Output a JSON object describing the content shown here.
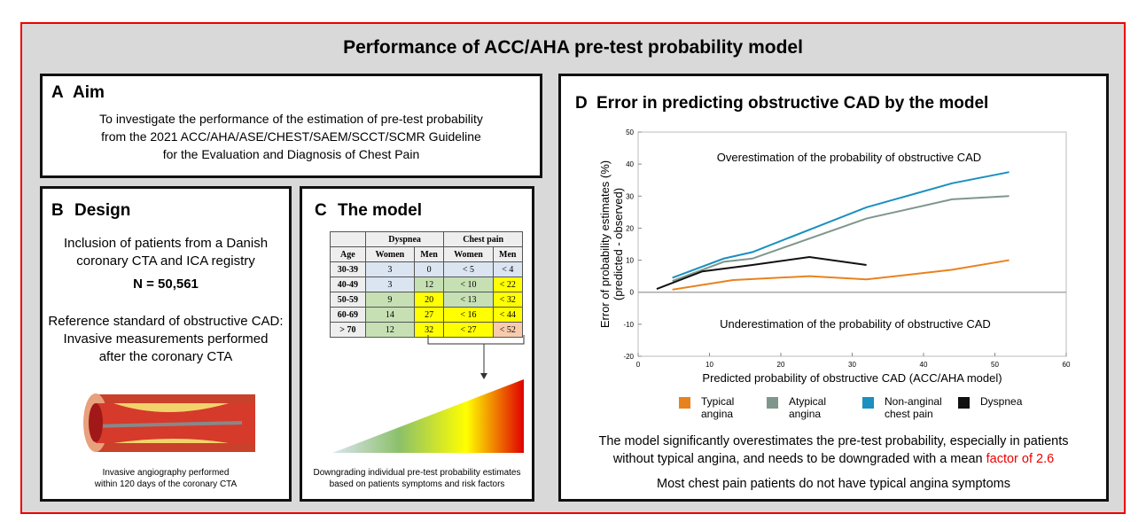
{
  "title": "Performance of ACC/AHA pre-test probability model",
  "panels": {
    "A": {
      "letter": "A",
      "heading": "Aim",
      "text": [
        "To investigate the performance of the estimation of pre-test probability",
        "from the 2021 ACC/AHA/ASE/CHEST/SAEM/SCCT/SCMR Guideline",
        "for the Evaluation and Diagnosis of Chest Pain"
      ]
    },
    "B": {
      "letter": "B",
      "heading": "Design",
      "inclusion": [
        "Inclusion of patients from a Danish",
        "coronary CTA and ICA registry"
      ],
      "n": "N = 50,561",
      "reference": [
        "Reference standard of obstructive CAD:",
        "Invasive measurements performed",
        "after the coronary CTA"
      ],
      "caption": [
        "Invasive angiography performed",
        "within 120 days of the coronary CTA"
      ]
    },
    "C": {
      "letter": "C",
      "heading": "The model",
      "table": {
        "group_headers": [
          "Dyspnea",
          "Chest pain"
        ],
        "columns": [
          "Age",
          "Women",
          "Men",
          "Women",
          "Men"
        ],
        "rows": [
          [
            "30-39",
            3,
            0,
            "<  5",
            "<  4"
          ],
          [
            "40-49",
            3,
            12,
            "< 10",
            "< 22"
          ],
          [
            "50-59",
            9,
            20,
            "< 13",
            "< 32"
          ],
          [
            "60-69",
            14,
            27,
            "< 16",
            "< 44"
          ],
          [
            "> 70",
            12,
            32,
            "< 27",
            "< 52"
          ]
        ]
      },
      "caption": [
        "Downgrading individual pre-test probability estimates",
        "based on patients symptoms and risk factors"
      ]
    },
    "D": {
      "letter": "D",
      "heading": "Error in predicting obstructive CAD by the model",
      "conclusion": [
        "The model significantly overestimates the pre-test probability, especially in patients",
        "without typical angina, and needs to be downgraded with a mean "
      ],
      "highlight": "factor of 2.6",
      "note": "Most chest pain patients do not have typical angina symptoms"
    }
  },
  "chart_data": {
    "type": "line",
    "xlabel": "Predicted probability of obstructive CAD (ACC/AHA model)",
    "ylabel": [
      "Error of probability estimates (%)",
      "(predicted - observed)"
    ],
    "annotations": [
      "Overestimation of the probability of obstructive CAD",
      "Underestimation of the probability of obstructive CAD"
    ],
    "xlim": [
      0,
      60
    ],
    "xticks": [
      0,
      10,
      20,
      30,
      40,
      50,
      60
    ],
    "ylim": [
      -20,
      50
    ],
    "yticks": [
      -20,
      -10,
      0,
      10,
      20,
      30,
      40,
      50
    ],
    "series": [
      {
        "name": "Typical angina",
        "color": "#e8821e",
        "x": [
          4.8,
          13.3,
          24,
          32,
          44,
          52
        ],
        "values": [
          0.8,
          3.8,
          5,
          4,
          7,
          10
        ]
      },
      {
        "name": "Atypical angina",
        "color": "#7f968c",
        "x": [
          4.8,
          12,
          16,
          32,
          44,
          52
        ],
        "values": [
          3.5,
          9.5,
          10.5,
          23,
          29,
          30
        ]
      },
      {
        "name": "Non-anginal chest pain",
        "color": "#1a8fc0",
        "x": [
          4.8,
          12,
          16,
          32,
          44,
          52
        ],
        "values": [
          4.5,
          10.5,
          12.5,
          26.5,
          34,
          37.5
        ]
      },
      {
        "name": "Dyspnea",
        "color": "#111111",
        "x": [
          2.6,
          9,
          16,
          24,
          32
        ],
        "values": [
          1,
          6.5,
          8.5,
          11,
          8.5
        ]
      }
    ]
  }
}
